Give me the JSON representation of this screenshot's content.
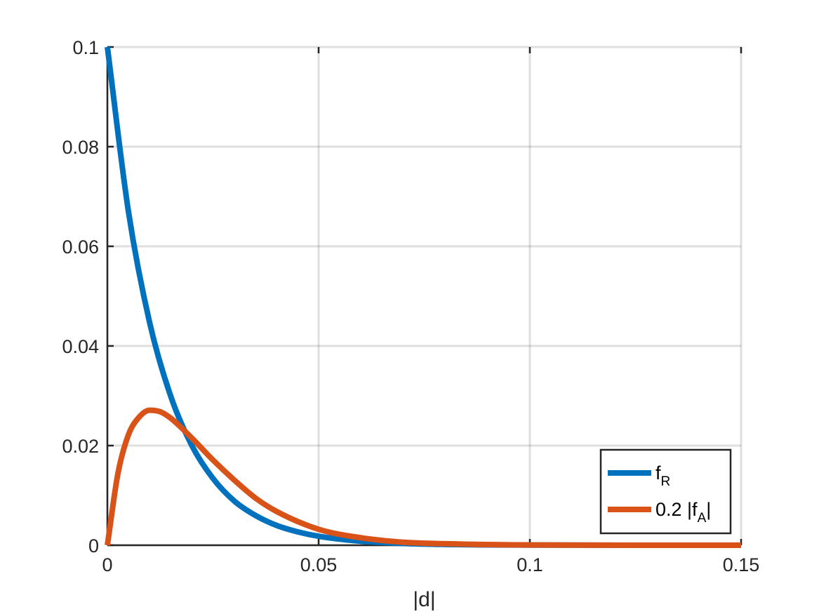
{
  "chart_data": {
    "type": "line",
    "title": "",
    "xlabel": "|d|",
    "ylabel": "",
    "xlim": [
      0,
      0.15
    ],
    "ylim": [
      0,
      0.1
    ],
    "grid": true,
    "legend_position": "bottom-right",
    "x_ticks": [
      "0",
      "0.05",
      "0.1",
      "0.15"
    ],
    "y_ticks": [
      "0",
      "0.02",
      "0.04",
      "0.06",
      "0.08",
      "0.1"
    ],
    "series": [
      {
        "name": "f_R",
        "legend_main": "f",
        "legend_sub": "R",
        "legend_suffix": "",
        "color": "#0072BD",
        "x": [
          0,
          0.005,
          0.01,
          0.015,
          0.02,
          0.025,
          0.03,
          0.035,
          0.04,
          0.045,
          0.05,
          0.06,
          0.07,
          0.08,
          0.09,
          0.1,
          0.12,
          0.15
        ],
        "y": [
          0.1,
          0.0669,
          0.0447,
          0.0299,
          0.02,
          0.0134,
          0.0089,
          0.006,
          0.004,
          0.0027,
          0.0018,
          0.0008,
          0.00036,
          0.00016,
          7e-05,
          3e-05,
          6e-06,
          5e-07
        ]
      },
      {
        "name": "0.2 |f_A|",
        "legend_main": "0.2 |f",
        "legend_sub": "A",
        "legend_suffix": "|",
        "color": "#D95319",
        "x": [
          0,
          0.0025,
          0.005,
          0.0075,
          0.01,
          0.0125,
          0.015,
          0.02,
          0.025,
          0.03,
          0.035,
          0.04,
          0.05,
          0.06,
          0.07,
          0.08,
          0.1,
          0.12,
          0.15
        ],
        "y": [
          0,
          0.0144,
          0.0222,
          0.0257,
          0.0271,
          0.0268,
          0.0255,
          0.0215,
          0.0171,
          0.0131,
          0.0095,
          0.0068,
          0.0032,
          0.0015,
          0.0006,
          0.0003,
          5e-05,
          1e-05,
          5e-07
        ]
      }
    ]
  }
}
